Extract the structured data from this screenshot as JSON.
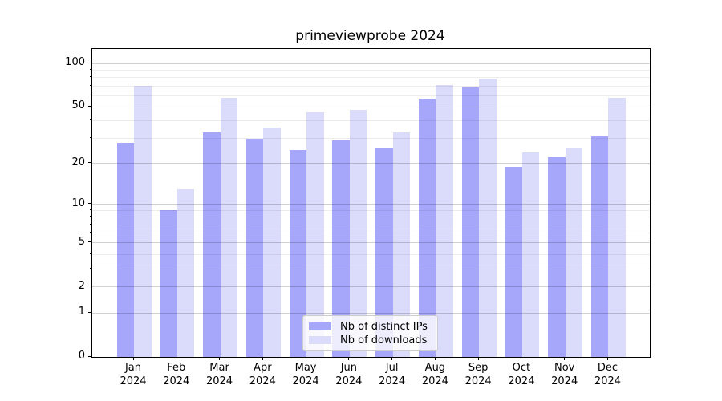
{
  "title": "primeviewprobe 2024",
  "chart_data": {
    "type": "bar",
    "title": "primeviewprobe 2024",
    "categories": [
      "Jan",
      "Feb",
      "Mar",
      "Apr",
      "May",
      "Jun",
      "Jul",
      "Aug",
      "Sep",
      "Oct",
      "Nov",
      "Dec"
    ],
    "category_year": "2024",
    "series": [
      {
        "name": "Nb of distinct IPs",
        "color": "#a6a6fb",
        "values": [
          28,
          9,
          33,
          30,
          25,
          29,
          26,
          57,
          68,
          19,
          22,
          31
        ]
      },
      {
        "name": "Nb of downloads",
        "color": "#dbdbfb",
        "values": [
          70,
          13,
          58,
          36,
          46,
          48,
          33,
          71,
          79,
          24,
          26,
          58
        ]
      }
    ],
    "xlabel": "",
    "ylabel": "",
    "y_scale": "log1p",
    "ylim": [
      0,
      126
    ],
    "y_ticks": [
      100,
      50,
      20,
      10,
      5,
      2,
      1,
      0
    ],
    "y_minor_gridlines": [
      3,
      4,
      6,
      7,
      8,
      9,
      30,
      40,
      60,
      70,
      80,
      90
    ],
    "grid": "on",
    "legend_position": "lower center",
    "axis_color": "#000000",
    "grid_color": "#b0b0b0"
  }
}
